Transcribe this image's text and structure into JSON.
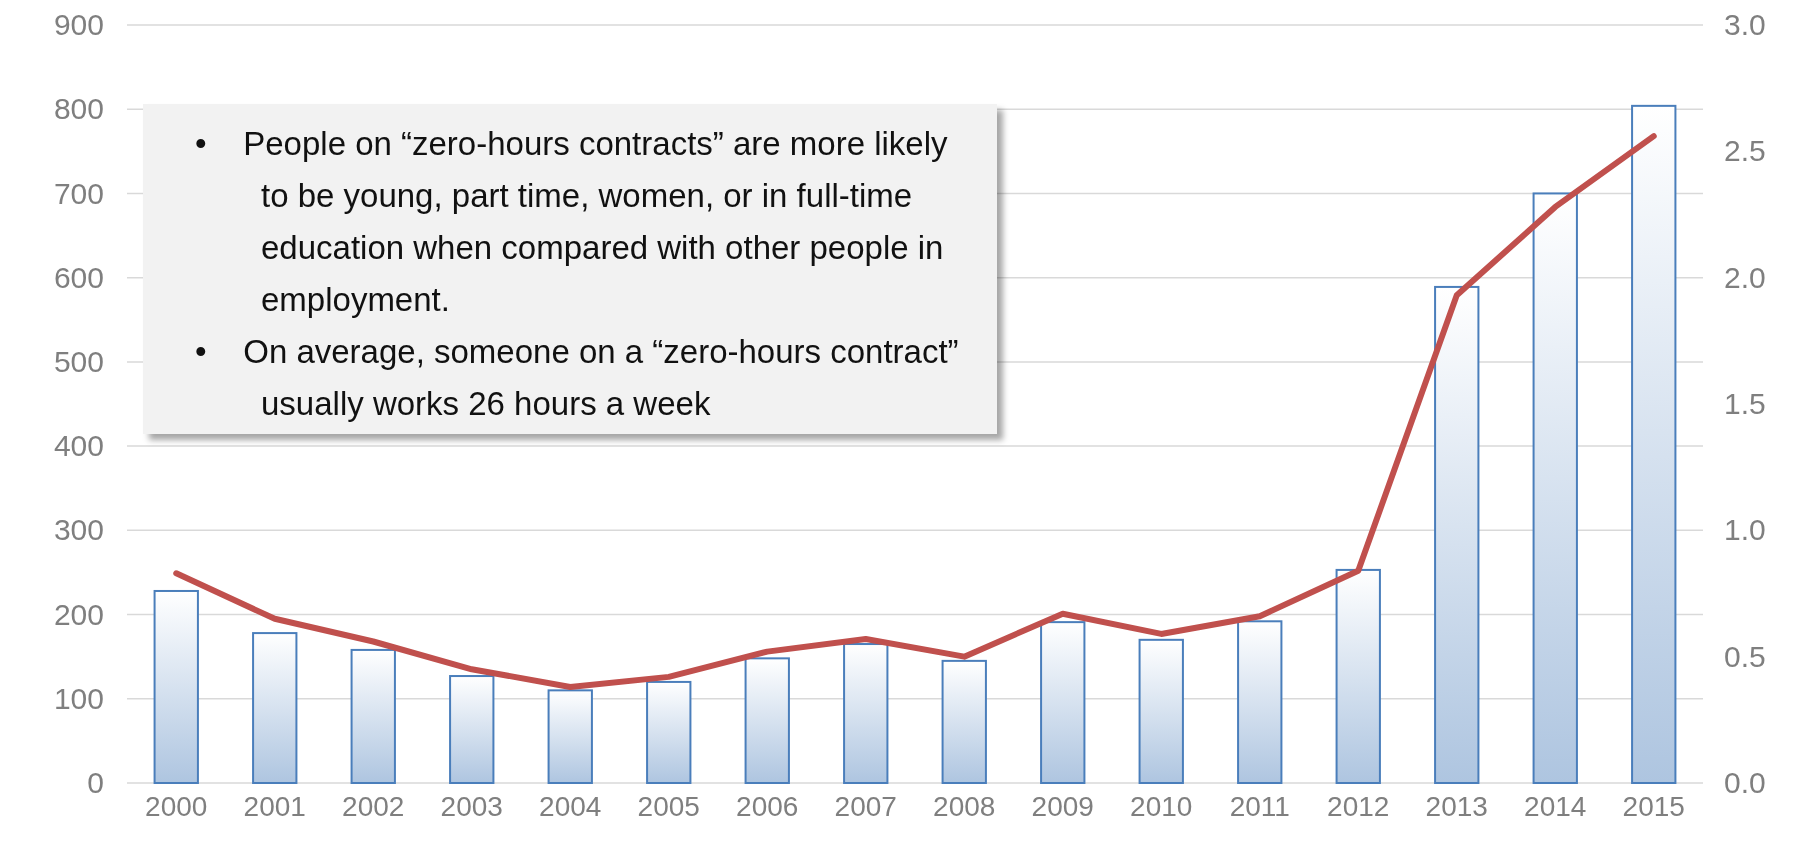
{
  "chart_data": {
    "type": "bar",
    "categories": [
      "2000",
      "2001",
      "2002",
      "2003",
      "2004",
      "2005",
      "2006",
      "2007",
      "2008",
      "2009",
      "2010",
      "2011",
      "2012",
      "2013",
      "2014",
      "2015"
    ],
    "series": [
      {
        "color": "#4a7ebb",
        "values": [
          228,
          178,
          158,
          127,
          110,
          120,
          148,
          165,
          145,
          191,
          170,
          192,
          253,
          589,
          700,
          804
        ]
      },
      {
        "type": "line",
        "axis": "y2",
        "color": "#c0504d",
        "values": [
          0.83,
          0.65,
          0.56,
          0.45,
          0.38,
          0.42,
          0.52,
          0.57,
          0.5,
          0.67,
          0.59,
          0.66,
          0.84,
          1.93,
          2.28,
          2.56
        ]
      }
    ],
    "ylim": [
      0,
      900
    ],
    "yticks": [
      0,
      100,
      200,
      300,
      400,
      500,
      600,
      700,
      800,
      900
    ],
    "y2lim": [
      0,
      3
    ],
    "y2ticks": [
      {
        "value": 0,
        "label": "0.0"
      },
      {
        "value": 0.5,
        "label": "0.5"
      },
      {
        "value": 1,
        "label": "1.0"
      },
      {
        "value": 1.5,
        "label": "1.5"
      },
      {
        "value": 2,
        "label": "2.0"
      },
      {
        "value": 2.5,
        "label": "2.5"
      },
      {
        "value": 3,
        "label": "3.0"
      }
    ],
    "grid": "y",
    "marker": "none",
    "line_style": "solid",
    "annotations": [
      "•    People on “zero-hours contracts” are more likely to be young, part time, women, or in full-time education when compared with other people in employment.",
      "•    On average, someone on a “zero-hours contract” usually works 26 hours a week"
    ]
  }
}
